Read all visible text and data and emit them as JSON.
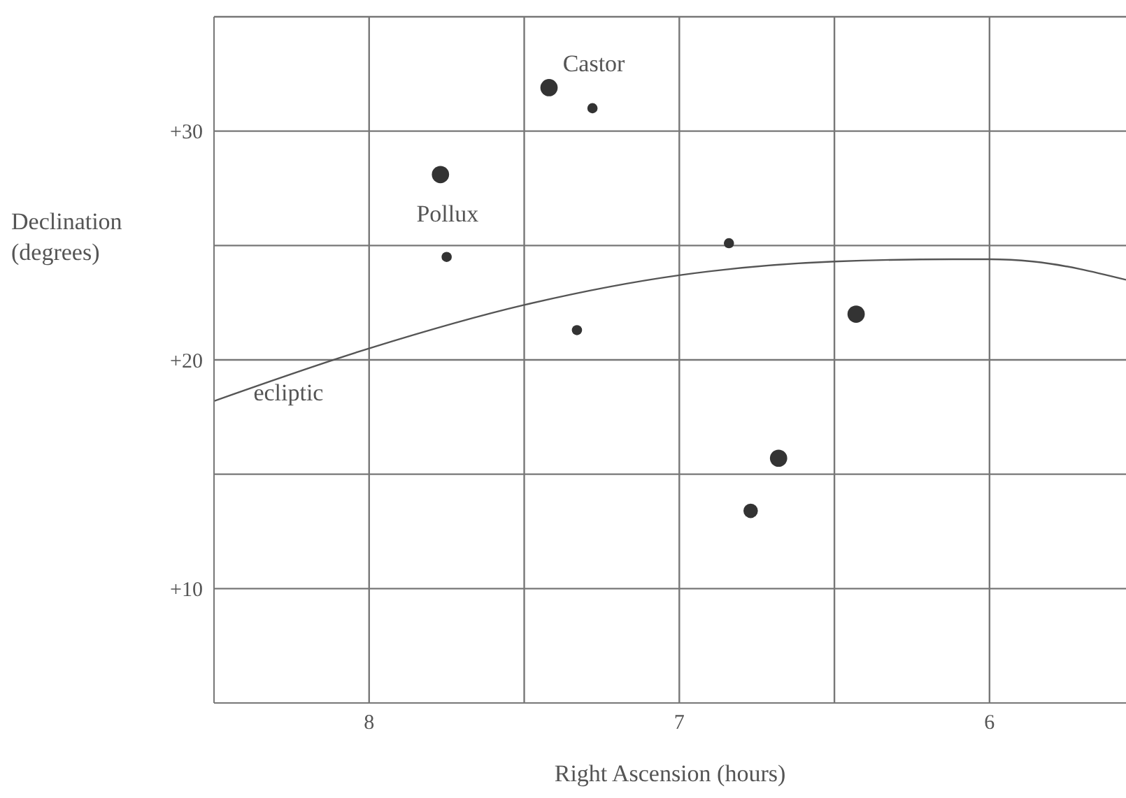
{
  "chart_data": {
    "type": "bubble",
    "xlabel": "Right Ascension (hours)",
    "ylabel": "Declination\n(degrees)",
    "xlim": [
      8.5,
      5.56
    ],
    "ylim": [
      5,
      35
    ],
    "xticks": [
      8,
      {
        "value": 7.5,
        "label": null
      },
      7,
      {
        "value": 6.5,
        "label": null
      },
      6
    ],
    "yticks": [
      {
        "value": 10,
        "label": "+10"
      },
      {
        "value": 15,
        "label": null
      },
      {
        "value": 20,
        "label": "+20"
      },
      {
        "value": 25,
        "label": null
      },
      {
        "value": 30,
        "label": "+30"
      },
      {
        "value": 35,
        "label": null
      }
    ],
    "grid": true,
    "legend": false,
    "series": [
      {
        "color": "#333333",
        "x": [
          7.42,
          7.28,
          7.77,
          7.75,
          6.84,
          7.33,
          6.43,
          6.68,
          6.77
        ],
        "values": [
          31.9,
          31.0,
          28.1,
          24.5,
          25.1,
          21.3,
          22.0,
          15.7,
          13.4
        ],
        "sizes": [
          1,
          0.35,
          1,
          0.35,
          0.35,
          0.35,
          1,
          1,
          0.7
        ]
      },
      {
        "type": "line",
        "color": "#555555",
        "x": [
          8.5,
          8.0,
          7.5,
          7.0,
          6.5,
          6.12,
          6.0,
          5.86,
          5.56
        ],
        "values": [
          18.2,
          20.5,
          22.4,
          23.7,
          24.3,
          24.4,
          24.4,
          24.3,
          23.5
        ]
      }
    ],
    "annotations": [
      {
        "text": "Castor",
        "x": 7.42,
        "y": 31.9
      },
      {
        "text": "Pollux",
        "x": 7.77,
        "y": 28.1
      },
      {
        "text": "ecliptic",
        "x": 8.26,
        "y": 19.3
      }
    ]
  }
}
